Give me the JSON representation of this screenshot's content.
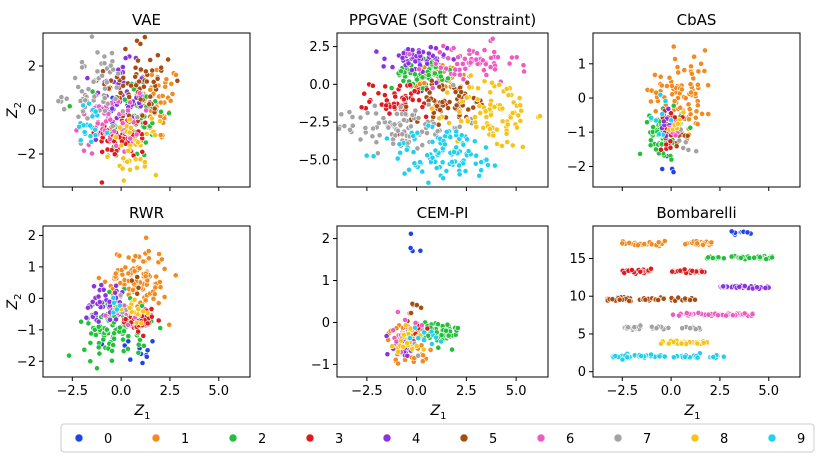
{
  "chart_data": {
    "type": "scatter",
    "figure": "Latent space (Z1, Z2) scatter of generated samples colored by digit class",
    "legend": {
      "placement": "bottom",
      "entries": [
        {
          "label": "0",
          "color": "#1f45e6"
        },
        {
          "label": "1",
          "color": "#f28a1e"
        },
        {
          "label": "2",
          "color": "#22c03a"
        },
        {
          "label": "3",
          "color": "#e0191f"
        },
        {
          "label": "4",
          "color": "#8a33e0"
        },
        {
          "label": "5",
          "color": "#a64d12"
        },
        {
          "label": "6",
          "color": "#ef5bc2"
        },
        {
          "label": "7",
          "color": "#a3a3a3"
        },
        {
          "label": "8",
          "color": "#f7c416"
        },
        {
          "label": "9",
          "color": "#1fd0ef"
        }
      ]
    },
    "x_ticks": [
      "−2.5",
      "0.0",
      "2.5",
      "5.0"
    ],
    "x_tick_values": [
      -2.5,
      0,
      2.5,
      5
    ],
    "xlim": [
      -4,
      6.6
    ],
    "subplots": [
      {
        "id": "vae",
        "title": "VAE",
        "ylabel": "Z2",
        "xlabel": "",
        "ylim": [
          -3.5,
          3.5
        ],
        "y_ticks": [
          -2,
          0,
          2
        ],
        "y_tick_labels": [
          "−2",
          "0",
          "2"
        ],
        "clusters": [
          {
            "cls": 0,
            "cx": -0.5,
            "cy": 0.6,
            "sx": 0.3,
            "sy": 0.5,
            "n": 6
          },
          {
            "cls": 1,
            "cx": 1.9,
            "cy": 0.3,
            "sx": 0.6,
            "sy": 0.9,
            "n": 55
          },
          {
            "cls": 2,
            "cx": 0.6,
            "cy": -0.3,
            "sx": 0.8,
            "sy": 1.0,
            "n": 70
          },
          {
            "cls": 3,
            "cx": 0.1,
            "cy": -1.2,
            "sx": 0.7,
            "sy": 0.5,
            "n": 70
          },
          {
            "cls": 4,
            "cx": -0.2,
            "cy": 0.5,
            "sx": 0.7,
            "sy": 0.8,
            "n": 60
          },
          {
            "cls": 5,
            "cx": 1.0,
            "cy": 1.3,
            "sx": 0.9,
            "sy": 1.0,
            "n": 60
          },
          {
            "cls": 6,
            "cx": -0.6,
            "cy": -0.6,
            "sx": 0.8,
            "sy": 0.7,
            "n": 50
          },
          {
            "cls": 7,
            "cx": -1.4,
            "cy": 0.8,
            "sx": 0.8,
            "sy": 1.0,
            "n": 60
          },
          {
            "cls": 8,
            "cx": 0.7,
            "cy": -1.7,
            "sx": 0.6,
            "sy": 0.6,
            "n": 40
          },
          {
            "cls": 9,
            "cx": -1.6,
            "cy": -0.9,
            "sx": 0.5,
            "sy": 0.6,
            "n": 20
          }
        ]
      },
      {
        "id": "ppgvae",
        "title": "PPGVAE (Soft Constraint)",
        "ylabel": "",
        "xlabel": "",
        "ylim": [
          -6.8,
          3.4
        ],
        "y_ticks": [
          2.5,
          0,
          -2.5,
          -5
        ],
        "y_tick_labels": [
          "2.5",
          "0.0",
          "−2.5",
          "−5.0"
        ],
        "clusters": [
          {
            "cls": 0,
            "cx": 0.3,
            "cy": -0.1,
            "sx": 0.2,
            "sy": 0.2,
            "n": 5
          },
          {
            "cls": 1,
            "cx": 1.2,
            "cy": 0.5,
            "sx": 0.6,
            "sy": 0.6,
            "n": 45
          },
          {
            "cls": 2,
            "cx": 0.2,
            "cy": 0.7,
            "sx": 0.7,
            "sy": 0.5,
            "n": 55
          },
          {
            "cls": 3,
            "cx": -0.5,
            "cy": -1.0,
            "sx": 0.9,
            "sy": 0.6,
            "n": 65
          },
          {
            "cls": 4,
            "cx": -0.1,
            "cy": 1.6,
            "sx": 0.8,
            "sy": 0.5,
            "n": 50
          },
          {
            "cls": 5,
            "cx": 1.8,
            "cy": -1.2,
            "sx": 1.0,
            "sy": 0.6,
            "n": 65
          },
          {
            "cls": 6,
            "cx": 2.7,
            "cy": 1.3,
            "sx": 1.2,
            "sy": 0.7,
            "n": 60
          },
          {
            "cls": 7,
            "cx": -0.8,
            "cy": -2.8,
            "sx": 1.6,
            "sy": 0.8,
            "n": 95
          },
          {
            "cls": 8,
            "cx": 3.9,
            "cy": -1.9,
            "sx": 1.0,
            "sy": 1.2,
            "n": 85
          },
          {
            "cls": 9,
            "cx": 1.5,
            "cy": -4.6,
            "sx": 1.5,
            "sy": 0.9,
            "n": 95
          }
        ]
      },
      {
        "id": "cbas",
        "title": "CbAS",
        "ylabel": "",
        "xlabel": "",
        "ylim": [
          -2.6,
          1.9
        ],
        "y_ticks": [
          1,
          0,
          -1,
          -2
        ],
        "y_tick_labels": [
          "1",
          "0",
          "−1",
          "−2"
        ],
        "clusters": [
          {
            "cls": 0,
            "cx": 0.0,
            "cy": -1.8,
            "sx": 0.3,
            "sy": 0.4,
            "n": 6
          },
          {
            "cls": 1,
            "cx": 0.6,
            "cy": 0.2,
            "sx": 0.8,
            "sy": 0.6,
            "n": 90
          },
          {
            "cls": 2,
            "cx": -0.3,
            "cy": -1.0,
            "sx": 0.4,
            "sy": 0.3,
            "n": 90
          },
          {
            "cls": 3,
            "cx": 0.0,
            "cy": -0.9,
            "sx": 0.3,
            "sy": 0.25,
            "n": 30
          },
          {
            "cls": 4,
            "cx": -0.2,
            "cy": -0.8,
            "sx": 0.25,
            "sy": 0.2,
            "n": 12
          },
          {
            "cls": 5,
            "cx": 0.4,
            "cy": -1.1,
            "sx": 0.2,
            "sy": 0.2,
            "n": 6
          },
          {
            "cls": 6,
            "cx": 0.2,
            "cy": -1.0,
            "sx": 0.2,
            "sy": 0.2,
            "n": 5
          },
          {
            "cls": 7,
            "cx": 0.6,
            "cy": -1.3,
            "sx": 0.3,
            "sy": 0.2,
            "n": 6
          },
          {
            "cls": 8,
            "cx": 0.3,
            "cy": -0.7,
            "sx": 0.2,
            "sy": 0.2,
            "n": 8
          },
          {
            "cls": 9,
            "cx": -0.6,
            "cy": -0.6,
            "sx": 0.3,
            "sy": 0.3,
            "n": 8
          }
        ]
      },
      {
        "id": "rwr",
        "title": "RWR",
        "ylabel": "Z2",
        "xlabel": "Z1",
        "ylim": [
          -2.5,
          2.3
        ],
        "y_ticks": [
          2,
          1,
          0,
          -1,
          -2
        ],
        "y_tick_labels": [
          "2",
          "1",
          "0",
          "−1",
          "−2"
        ],
        "clusters": [
          {
            "cls": 0,
            "cx": 0.8,
            "cy": -1.7,
            "sx": 0.8,
            "sy": 0.4,
            "n": 16
          },
          {
            "cls": 1,
            "cx": 0.8,
            "cy": 0.6,
            "sx": 0.8,
            "sy": 0.5,
            "n": 110
          },
          {
            "cls": 2,
            "cx": -0.3,
            "cy": -0.9,
            "sx": 0.8,
            "sy": 0.5,
            "n": 110
          },
          {
            "cls": 3,
            "cx": 0.9,
            "cy": -0.7,
            "sx": 0.4,
            "sy": 0.2,
            "n": 50
          },
          {
            "cls": 4,
            "cx": -0.9,
            "cy": -0.1,
            "sx": 0.5,
            "sy": 0.3,
            "n": 45
          },
          {
            "cls": 5,
            "cx": 0.7,
            "cy": 0.2,
            "sx": 0.2,
            "sy": 0.2,
            "n": 5
          },
          {
            "cls": 6,
            "cx": 0.1,
            "cy": -0.5,
            "sx": 0.3,
            "sy": 0.2,
            "n": 12
          },
          {
            "cls": 7,
            "cx": 0.2,
            "cy": -0.4,
            "sx": 0.2,
            "sy": 0.2,
            "n": 5
          },
          {
            "cls": 8,
            "cx": 0.6,
            "cy": -0.3,
            "sx": 0.3,
            "sy": 0.2,
            "n": 20
          },
          {
            "cls": 9,
            "cx": -0.1,
            "cy": -0.3,
            "sx": 0.2,
            "sy": 0.2,
            "n": 5
          }
        ]
      },
      {
        "id": "cempi",
        "title": "CEM-PI",
        "ylabel": "",
        "xlabel": "Z1",
        "ylim": [
          -1.3,
          2.3
        ],
        "y_ticks": [
          2,
          1,
          0,
          -1
        ],
        "y_tick_labels": [
          "2",
          "1",
          "0",
          "−1"
        ],
        "clusters": [
          {
            "cls": 0,
            "cx": -0.2,
            "cy": 1.9,
            "sx": 0.3,
            "sy": 0.2,
            "n": 4
          },
          {
            "cls": 1,
            "cx": -0.4,
            "cy": -0.5,
            "sx": 0.5,
            "sy": 0.25,
            "n": 60
          },
          {
            "cls": 2,
            "cx": 1.0,
            "cy": -0.25,
            "sx": 0.6,
            "sy": 0.15,
            "n": 70
          },
          {
            "cls": 3,
            "cx": -0.2,
            "cy": -0.2,
            "sx": 0.3,
            "sy": 0.2,
            "n": 15
          },
          {
            "cls": 4,
            "cx": -0.7,
            "cy": -0.6,
            "sx": 0.4,
            "sy": 0.15,
            "n": 15
          },
          {
            "cls": 5,
            "cx": -0.3,
            "cy": 0.3,
            "sx": 0.2,
            "sy": 0.15,
            "n": 6
          },
          {
            "cls": 6,
            "cx": -0.6,
            "cy": -0.3,
            "sx": 0.3,
            "sy": 0.2,
            "n": 15
          },
          {
            "cls": 7,
            "cx": -0.3,
            "cy": -0.4,
            "sx": 0.3,
            "sy": 0.2,
            "n": 10
          },
          {
            "cls": 8,
            "cx": -0.3,
            "cy": -0.4,
            "sx": 0.4,
            "sy": 0.2,
            "n": 25
          },
          {
            "cls": 9,
            "cx": 0.3,
            "cy": -0.3,
            "sx": 0.4,
            "sy": 0.2,
            "n": 10
          }
        ]
      },
      {
        "id": "bombarelli",
        "title": "Bombarelli",
        "ylabel": "",
        "xlabel": "Z1",
        "ylim": [
          -0.7,
          19.3
        ],
        "y_ticks": [
          15,
          10,
          5,
          0
        ],
        "y_tick_labels": [
          "15",
          "10",
          "5",
          "0"
        ],
        "bands": [
          {
            "cls": 0,
            "y": 18.4,
            "segments": [
              [
                3.0,
                4.3
              ]
            ],
            "n": 10
          },
          {
            "cls": 1,
            "y": 17.0,
            "segments": [
              [
                -2.7,
                -0.3
              ],
              [
                0.7,
                2.2
              ]
            ],
            "n": 60
          },
          {
            "cls": 2,
            "y": 15.1,
            "segments": [
              [
                1.7,
                5.2
              ]
            ],
            "n": 45
          },
          {
            "cls": 3,
            "y": 13.3,
            "segments": [
              [
                -2.5,
                -1.0
              ],
              [
                0.0,
                1.8
              ]
            ],
            "n": 55
          },
          {
            "cls": 4,
            "y": 11.2,
            "segments": [
              [
                2.5,
                5.0
              ]
            ],
            "n": 45
          },
          {
            "cls": 5,
            "y": 9.6,
            "segments": [
              [
                -3.3,
                -2.0
              ],
              [
                -1.7,
                1.3
              ]
            ],
            "n": 60
          },
          {
            "cls": 6,
            "y": 7.6,
            "segments": [
              [
                0.0,
                4.2
              ]
            ],
            "n": 50
          },
          {
            "cls": 7,
            "y": 5.8,
            "segments": [
              [
                -2.5,
                -1.5
              ],
              [
                -1.0,
                1.5
              ]
            ],
            "n": 45
          },
          {
            "cls": 8,
            "y": 3.9,
            "segments": [
              [
                -0.6,
                1.9
              ]
            ],
            "n": 40
          },
          {
            "cls": 9,
            "y": 2.0,
            "segments": [
              [
                -3.0,
                -1.2
              ],
              [
                -1.2,
                3.0
              ]
            ],
            "n": 55
          }
        ]
      }
    ]
  }
}
